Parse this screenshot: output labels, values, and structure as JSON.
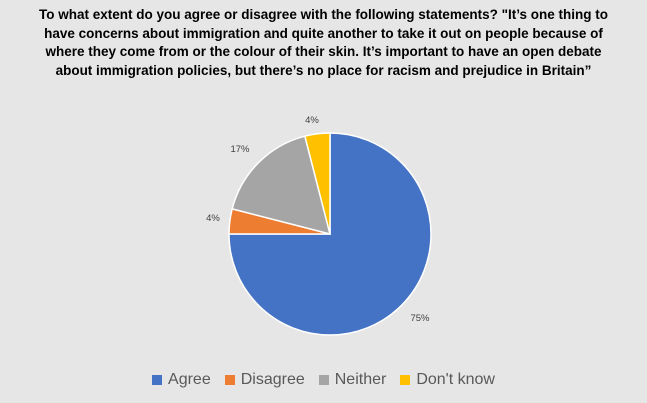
{
  "chart_data": {
    "type": "pie",
    "title": "To what extent do you agree or disagree with the following statements? \"It’s one thing to have concerns about immigration and quite another to take it out on people because of where they come from or the colour of their skin. It’s important to have an open debate about immigration policies, but there’s no place for racism and prejudice in Britain”",
    "categories": [
      "Agree",
      "Disagree",
      "Neither",
      "Don't know"
    ],
    "values": [
      75,
      4,
      17,
      4
    ],
    "data_labels": [
      "75%",
      "4%",
      "17%",
      "4%"
    ],
    "colors": [
      "#4472c4",
      "#ed7d31",
      "#a5a5a5",
      "#ffc000"
    ],
    "legend_position": "bottom"
  }
}
